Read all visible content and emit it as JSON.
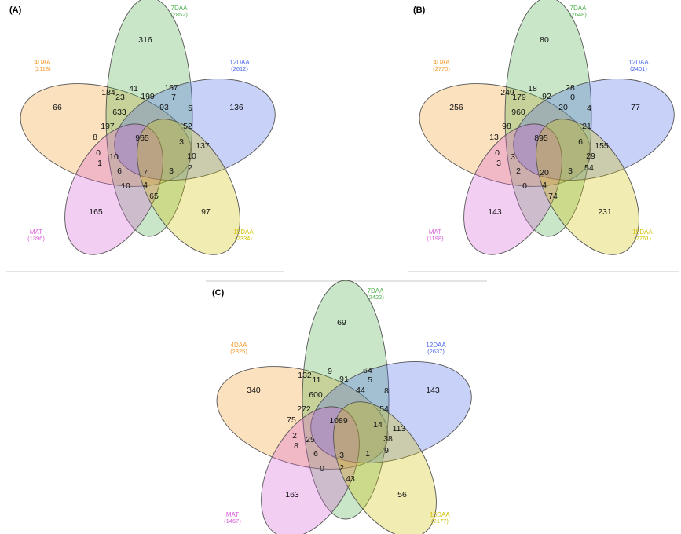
{
  "colors": {
    "4DAA": "#f59a2b",
    "7DAA": "#4daf4a",
    "12DAA": "#4a66e8",
    "MAT": "#d85cd8",
    "15DAA": "#d0c000"
  },
  "panels": [
    {
      "label": "(A)",
      "sets": [
        {
          "key": "7DAA",
          "name": "7DAA",
          "count": "(2852)"
        },
        {
          "key": "4DAA",
          "name": "4DAA",
          "count": "(2118)"
        },
        {
          "key": "12DAA",
          "name": "12DAA",
          "count": "(2612)"
        },
        {
          "key": "MAT",
          "name": "MAT",
          "count": "(1396)"
        },
        {
          "key": "15DAA",
          "name": "15DAA",
          "count": "(2334)"
        }
      ],
      "regions": [
        "316",
        "66",
        "136",
        "165",
        "97",
        "184",
        "41",
        "157",
        "23",
        "199",
        "7",
        "633",
        "93",
        "5",
        "197",
        "965",
        "52",
        "8",
        "137",
        "3",
        "10",
        "10",
        "0",
        "2",
        "1",
        "6",
        "7",
        "3",
        "10",
        "4",
        "65"
      ]
    },
    {
      "label": "(B)",
      "sets": [
        {
          "key": "7DAA",
          "name": "7DAA",
          "count": "(2648)"
        },
        {
          "key": "4DAA",
          "name": "4DAA",
          "count": "(2770)"
        },
        {
          "key": "12DAA",
          "name": "12DAA",
          "count": "(2401)"
        },
        {
          "key": "MAT",
          "name": "MAT",
          "count": "(1198)"
        },
        {
          "key": "15DAA",
          "name": "15DAA",
          "count": "(2761)"
        }
      ],
      "regions": [
        "80",
        "256",
        "77",
        "143",
        "231",
        "249",
        "18",
        "28",
        "179",
        "92",
        "0",
        "960",
        "20",
        "4",
        "98",
        "895",
        "21",
        "13",
        "155",
        "6",
        "3",
        "29",
        "0",
        "54",
        "3",
        "2",
        "20",
        "3",
        "0",
        "4",
        "74"
      ]
    },
    {
      "label": "(C)",
      "sets": [
        {
          "key": "7DAA",
          "name": "7DAA",
          "count": "(2422)"
        },
        {
          "key": "4DAA",
          "name": "4DAA",
          "count": "(2825)"
        },
        {
          "key": "12DAA",
          "name": "12DAA",
          "count": "(2637)"
        },
        {
          "key": "MAT",
          "name": "MAT",
          "count": "(1467)"
        },
        {
          "key": "15DAA",
          "name": "15DAA",
          "count": "(2177)"
        }
      ],
      "regions": [
        "69",
        "340",
        "143",
        "163",
        "56",
        "132",
        "9",
        "64",
        "11",
        "91",
        "5",
        "600",
        "44",
        "8",
        "272",
        "1089",
        "54",
        "75",
        "113",
        "14",
        "25",
        "38",
        "2",
        "9",
        "8",
        "6",
        "3",
        "1",
        "0",
        "2",
        "43"
      ]
    }
  ]
}
